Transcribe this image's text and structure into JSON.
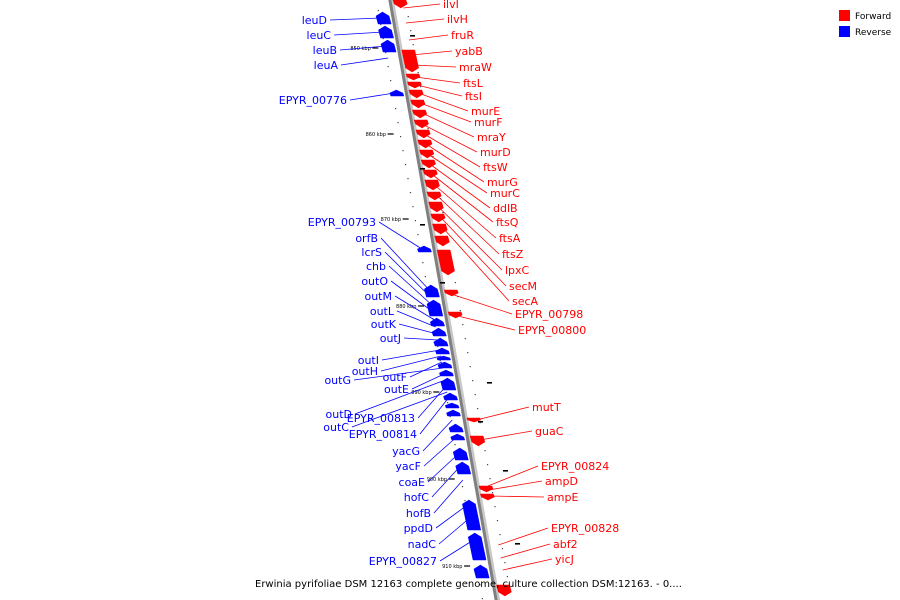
{
  "colors": {
    "forward": "#ff0000",
    "reverse": "#0000ff",
    "axis": "#808080"
  },
  "legend": [
    {
      "label": "Forward",
      "strand": "forward"
    },
    {
      "label": "Reverse",
      "strand": "reverse"
    }
  ],
  "caption": "Erwinia pyrifoliae DSM 12163 complete genome, culture collection DSM:12163. - 0....",
  "ticks": [
    "850 kbp",
    "860 kbp",
    "870 kbp",
    "880 kbp",
    "890 kbp",
    "900 kbp",
    "910 kbp"
  ],
  "forward_genes": [
    "ilvI",
    "ilvH",
    "fruR",
    "yabB",
    "mraW",
    "ftsL",
    "ftsI",
    "murE",
    "murF",
    "mraY",
    "murD",
    "ftsW",
    "murG",
    "murC",
    "ddlB",
    "ftsQ",
    "ftsA",
    "ftsZ",
    "lpxC",
    "secM",
    "secA",
    "EPYR_00798",
    "EPYR_00800",
    "mutT",
    "guaC",
    "EPYR_00824",
    "ampD",
    "ampE",
    "EPYR_00828",
    "abf2",
    "yicJ"
  ],
  "reverse_genes": [
    "leuD",
    "leuC",
    "leuB",
    "leuA",
    "EPYR_00776",
    "EPYR_00793",
    "orfB",
    "lcrS",
    "chb",
    "outO",
    "outM",
    "outL",
    "outK",
    "outJ",
    "outI",
    "outH",
    "outF",
    "outG",
    "outE",
    "outD",
    "EPYR_00813",
    "outC",
    "EPYR_00814",
    "yacG",
    "yacF",
    "coaE",
    "hofC",
    "hofB",
    "ppdD",
    "nadC",
    "EPYR_00827"
  ]
}
